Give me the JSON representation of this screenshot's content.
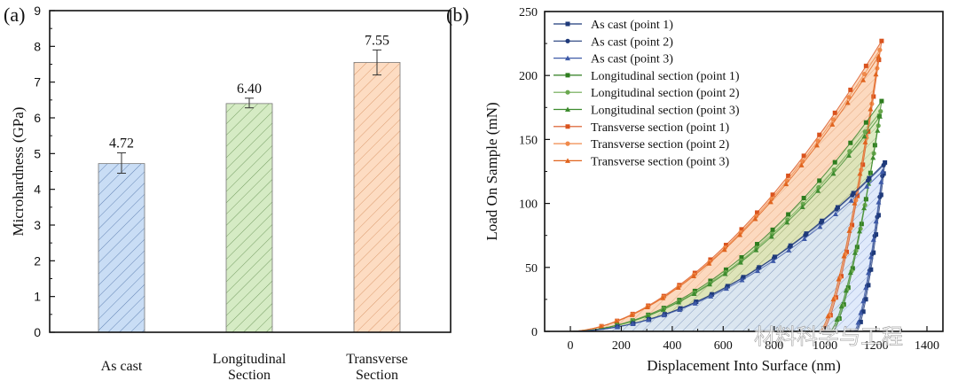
{
  "chart_data": [
    {
      "type": "bar",
      "panel_label": "(a)",
      "title": "",
      "xlabel": "",
      "ylabel": "Microhardness (GPa)",
      "ylim": [
        0,
        9
      ],
      "yticks": [
        "0",
        "1",
        "2",
        "3",
        "4",
        "5",
        "6",
        "7",
        "8",
        "9"
      ],
      "categories": [
        "As cast",
        "Longitudinal Section",
        "Transverse Section"
      ],
      "category_lines": [
        [
          "As cast"
        ],
        [
          "Longitudinal",
          "Section"
        ],
        [
          "Transverse",
          "Section"
        ]
      ],
      "values": [
        4.72,
        6.4,
        7.55
      ],
      "value_labels": [
        "4.72",
        "6.40",
        "7.55"
      ],
      "error_low": [
        4.45,
        6.28,
        7.2
      ],
      "error_high": [
        5.02,
        6.55,
        7.9
      ],
      "colors": [
        "#c9ddf5",
        "#d5ebc4",
        "#fddcc2"
      ],
      "hatch_colors": [
        "#4a6fa5",
        "#5e8a4a",
        "#d48a5a"
      ],
      "grid": false
    },
    {
      "type": "line",
      "panel_label": "(b)",
      "title": "",
      "xlabel": "Displacement Into Surface (nm)",
      "ylabel": "Load On Sample (mN)",
      "xlim": [
        -100,
        1450
      ],
      "ylim": [
        0,
        250
      ],
      "xticks": [
        "0",
        "200",
        "400",
        "600",
        "800",
        "1000",
        "1200",
        "1400"
      ],
      "yticks": [
        "0",
        "50",
        "100",
        "150",
        "200",
        "250"
      ],
      "legend_position": "top-left",
      "grid": false,
      "series": [
        {
          "name": "As cast (point 1)",
          "color": "#1f3a7a",
          "marker": "square",
          "max_load": 132,
          "max_disp": 1235,
          "final_disp": 1125,
          "loading_exp": 1.9
        },
        {
          "name": "As cast (point 2)",
          "color": "#1f3a7a",
          "marker": "circle",
          "max_load": 130,
          "max_disp": 1230,
          "final_disp": 1120,
          "loading_exp": 1.9
        },
        {
          "name": "As cast (point 3)",
          "color": "#3e5aa8",
          "marker": "triangle",
          "max_load": 125,
          "max_disp": 1225,
          "final_disp": 1115,
          "loading_exp": 1.9
        },
        {
          "name": "Longitudinal section (point 1)",
          "color": "#2e7d1f",
          "marker": "square",
          "max_load": 180,
          "max_disp": 1222,
          "final_disp": 1030,
          "loading_exp": 1.9
        },
        {
          "name": "Longitudinal section (point 2)",
          "color": "#6aa84f",
          "marker": "circle",
          "max_load": 172,
          "max_disp": 1218,
          "final_disp": 1025,
          "loading_exp": 1.9
        },
        {
          "name": "Longitudinal section (point 3)",
          "color": "#3d8b2e",
          "marker": "triangle",
          "max_load": 168,
          "max_disp": 1215,
          "final_disp": 1020,
          "loading_exp": 1.9
        },
        {
          "name": "Transverse section (point 1)",
          "color": "#d9531e",
          "marker": "square",
          "max_load": 227,
          "max_disp": 1222,
          "final_disp": 990,
          "loading_exp": 1.75
        },
        {
          "name": "Transverse section (point 2)",
          "color": "#f08a4b",
          "marker": "circle",
          "max_load": 220,
          "max_disp": 1215,
          "final_disp": 985,
          "loading_exp": 1.75
        },
        {
          "name": "Transverse section (point 3)",
          "color": "#e0641f",
          "marker": "triangle",
          "max_load": 215,
          "max_disp": 1210,
          "final_disp": 980,
          "loading_exp": 1.75
        }
      ]
    }
  ],
  "watermark": "材料科学与工程"
}
